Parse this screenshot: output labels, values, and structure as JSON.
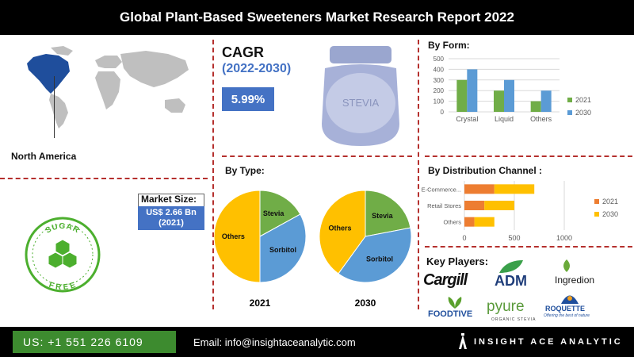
{
  "header": {
    "title": "Global  Plant-Based Sweeteners Market Research Report 2022"
  },
  "region": {
    "label": "North America"
  },
  "cagr": {
    "label": "CAGR",
    "period": "(2022-2030)",
    "value": "5.99%"
  },
  "jar": {
    "label": "STEVIA"
  },
  "market_size": {
    "label": "Market Size:",
    "value": "US$ 2.66 Bn",
    "year": "(2021)"
  },
  "badge": {
    "top": "SUGAR",
    "bottom": "FREE"
  },
  "colors": {
    "s2021": "#70ad47",
    "s2030": "#5b9bd5",
    "dist2021": "#ed7d31",
    "dist2030": "#ffc000",
    "pie_others": "#ffc000",
    "pie_sorbitol": "#5b9bd5",
    "pie_stevia": "#70ad47",
    "accent": "#4472c4",
    "dash": "#b5302e"
  },
  "key_players": {
    "title": "Key Players:",
    "logos": [
      "Cargill",
      "ADM",
      "Ingredion",
      "FOODTIVE",
      "pyure",
      "ORGANIC STEVIA",
      "ROQUETTE",
      "Offering the best of nature"
    ]
  },
  "footer": {
    "phone": "US: +1 551 226 6109",
    "email": "Email: info@insightaceanalytic.com",
    "brand": "INSIGHT ACE ANALYTIC"
  },
  "chart_data": [
    {
      "type": "bar",
      "title": "By Form:",
      "categories": [
        "Crystal",
        "Liquid",
        "Others"
      ],
      "series": [
        {
          "name": "2021",
          "values": [
            300,
            200,
            100
          ]
        },
        {
          "name": "2030",
          "values": [
            400,
            300,
            200
          ]
        }
      ],
      "ylim": [
        0,
        500
      ],
      "yticks": [
        0,
        100,
        200,
        300,
        400,
        500
      ],
      "legend": "right"
    },
    {
      "type": "bar",
      "orientation": "horizontal",
      "title": "By Distribution Channel :",
      "categories": [
        "E-Commerce...",
        "Retail Stores",
        "Others"
      ],
      "series": [
        {
          "name": "2021",
          "values": [
            300,
            200,
            100
          ]
        },
        {
          "name": "2030",
          "values": [
            400,
            300,
            200
          ]
        }
      ],
      "xlim": [
        0,
        1000
      ],
      "xticks": [
        0,
        500,
        1000
      ],
      "stacked": true,
      "legend": "right"
    },
    {
      "type": "pie",
      "title": "By Type:",
      "pies": [
        {
          "label": "2021",
          "slices": [
            {
              "name": "Others",
              "value": 50
            },
            {
              "name": "Sorbitol",
              "value": 33
            },
            {
              "name": "Stevia",
              "value": 17
            }
          ]
        },
        {
          "label": "2030",
          "slices": [
            {
              "name": "Others",
              "value": 40
            },
            {
              "name": "Sorbitol",
              "value": 38
            },
            {
              "name": "Stevia",
              "value": 22
            }
          ]
        }
      ]
    }
  ]
}
